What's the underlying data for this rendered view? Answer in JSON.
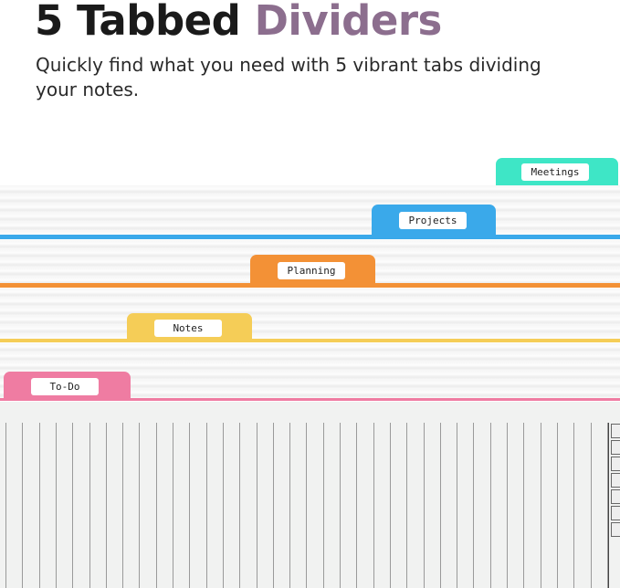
{
  "header": {
    "title_main": "5 Tabbed",
    "title_accent": "Dividers",
    "subtitle": "Quickly find what you need with 5 vibrant tabs dividing your notes."
  },
  "tabs": [
    {
      "label": "Meetings",
      "color": "#3ee6c6"
    },
    {
      "label": "Projects",
      "color": "#3aa9ea"
    },
    {
      "label": "Planning",
      "color": "#f39136"
    },
    {
      "label": "Notes",
      "color": "#f5cd57"
    },
    {
      "label": "To-Do",
      "color": "#ef7ca2"
    }
  ],
  "colors": {
    "title_accent": "#8c6e8e",
    "paper": "#f1f2f1"
  }
}
